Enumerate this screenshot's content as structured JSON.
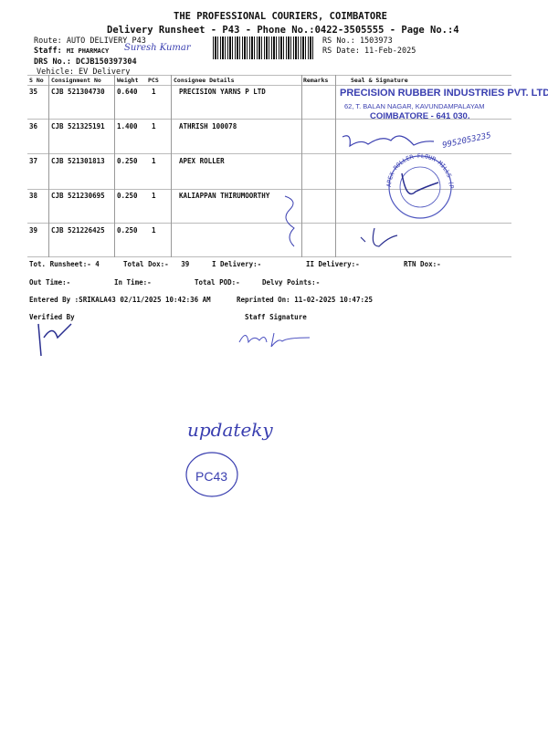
{
  "header": {
    "company": "THE PROFESSIONAL COURIERS, COIMBATORE",
    "subtitle": "Delivery Runsheet - P43 - Phone No.:0422-3505555 - Page No.:4",
    "route": "Route: AUTO DELIVERY P43",
    "staff_label": "Staff:",
    "staff_value": "MI PHARMACY",
    "staff_handwritten": "Suresh Kumar",
    "drs": "DRS No.: DCJB150397304",
    "vehicle": "Vehicle: EV Delivery",
    "rs_no": "RS No.: 1503973",
    "rs_date": "RS Date: 11-Feb-2025"
  },
  "table": {
    "columns": [
      "S No",
      "Consignment No",
      "Weight",
      "PCS",
      "Consignee Details",
      "Remarks",
      "Seal & Signature"
    ],
    "rows": [
      {
        "sno": "35",
        "cn": "CJB 521304730",
        "weight": "0.640",
        "pcs": "1",
        "consignee": "PRECISION YARNS P LTD"
      },
      {
        "sno": "36",
        "cn": "CJB 521325191",
        "weight": "1.400",
        "pcs": "1",
        "consignee": "ATHRISH  100078"
      },
      {
        "sno": "37",
        "cn": "CJB 521301813",
        "weight": "0.250",
        "pcs": "1",
        "consignee": "APEX ROLLER"
      },
      {
        "sno": "38",
        "cn": "CJB 521230695",
        "weight": "0.250",
        "pcs": "1",
        "consignee": "KALIAPPAN THIRUMOORTHY"
      },
      {
        "sno": "39",
        "cn": "CJB 521226425",
        "weight": "0.250",
        "pcs": "1",
        "consignee": ""
      }
    ]
  },
  "stamps": {
    "precision_l1": "PRECISION RUBBER INDUSTRIES PVT. LTD",
    "precision_l2": "62, T. BALAN NAGAR, KAVUNDAMPALAYAM",
    "precision_l3": "COIMBATORE - 641 030.",
    "phone_handwritten": "9952053235",
    "apex": "APEX ROLLER FLOUR MILLS (P) LTD CBE",
    "pc43": "PC43",
    "note_handwritten": "updateky"
  },
  "summary": {
    "tot_runsheet": "Tot. Runsheet:- 4",
    "total_dox": "Total Dox:-   39",
    "i_delivery": "I Delivery:-",
    "ii_delivery": "II Delivery:-",
    "rtn_dox": "RTN Dox:-",
    "out_time": "Out Time:-",
    "in_time": "In Time:-",
    "total_pod": "Total POD:-",
    "delvy_points": "Delvy Points:-",
    "entered_by": "Entered By :SRIKALA43 02/11/2025 10:42:36 AM",
    "reprinted": "Reprinted On: 11-02-2025 10:47:25",
    "verified_by": "Verified By",
    "staff_signature": "Staff Signature"
  },
  "colors": {
    "ink": "#3a3fb0",
    "text": "#111111"
  }
}
